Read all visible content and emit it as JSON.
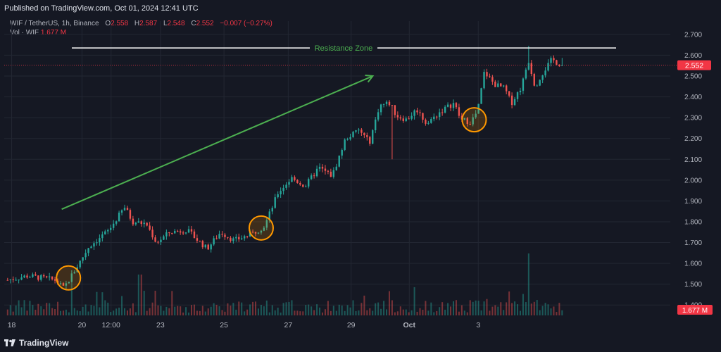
{
  "header": {
    "published": "Published on TradingView.com, Oct 01, 2024 12:41 UTC"
  },
  "legend": {
    "symbol": "WIF / TetherUS, 1h, Binance",
    "o_label": "O",
    "o_value": "2.558",
    "h_label": "H",
    "h_value": "2.587",
    "l_label": "L",
    "l_value": "2.548",
    "c_label": "C",
    "c_value": "2.552",
    "change": "−0.007 (−0.27%)",
    "vol_label": "Vol · WIF",
    "vol_value": "1.677 M"
  },
  "footer": {
    "brand": "TradingView"
  },
  "colors": {
    "bg": "#151823",
    "grid": "#232733",
    "up": "#26a69a",
    "down": "#ef5350",
    "green_annot": "#4caf50",
    "orange": "#ff9800",
    "price_label": "#f23645"
  },
  "chart_data": {
    "type": "candlestick",
    "y_axis": {
      "ticks": [
        "2.700",
        "2.600",
        "2.500",
        "2.400",
        "2.300",
        "2.200",
        "2.100",
        "2.000",
        "1.900",
        "1.800",
        "1.700",
        "1.600",
        "1.500",
        "1.400"
      ],
      "ylim": [
        1.35,
        2.73
      ]
    },
    "x_axis": {
      "ticks": [
        "18",
        "20",
        "12:00",
        "23",
        "25",
        "27",
        "29",
        "Oct",
        "3"
      ]
    },
    "current_price": "2.552",
    "current_volume": "1.677 M",
    "anchors": [
      {
        "t": 0,
        "p": 1.52
      },
      {
        "t": 3,
        "p": 1.54
      },
      {
        "t": 7,
        "p": 1.52
      },
      {
        "t": 8.3,
        "p": 1.48
      },
      {
        "t": 10,
        "p": 1.57
      },
      {
        "t": 12,
        "p": 1.68
      },
      {
        "t": 15,
        "p": 1.76
      },
      {
        "t": 17.3,
        "p": 1.87
      },
      {
        "t": 18.5,
        "p": 1.8
      },
      {
        "t": 20.5,
        "p": 1.79
      },
      {
        "t": 22,
        "p": 1.7
      },
      {
        "t": 24,
        "p": 1.75
      },
      {
        "t": 26.5,
        "p": 1.76
      },
      {
        "t": 29.5,
        "p": 1.67
      },
      {
        "t": 31.5,
        "p": 1.75
      },
      {
        "t": 33.5,
        "p": 1.71
      },
      {
        "t": 36,
        "p": 1.74
      },
      {
        "t": 38,
        "p": 1.78
      },
      {
        "t": 40,
        "p": 1.94
      },
      {
        "t": 42,
        "p": 2.01
      },
      {
        "t": 44,
        "p": 1.97
      },
      {
        "t": 46,
        "p": 2.06
      },
      {
        "t": 48,
        "p": 2.02
      },
      {
        "t": 50,
        "p": 2.2
      },
      {
        "t": 52,
        "p": 2.24
      },
      {
        "t": 53.5,
        "p": 2.18
      },
      {
        "t": 55,
        "p": 2.36
      },
      {
        "t": 56.5,
        "p": 2.37
      },
      {
        "t": 57.5,
        "p": 2.31
      },
      {
        "t": 59,
        "p": 2.29
      },
      {
        "t": 60.5,
        "p": 2.34
      },
      {
        "t": 62,
        "p": 2.27
      },
      {
        "t": 64,
        "p": 2.33
      },
      {
        "t": 66,
        "p": 2.37
      },
      {
        "t": 67,
        "p": 2.29
      },
      {
        "t": 68.5,
        "p": 2.28
      },
      {
        "t": 69.5,
        "p": 2.33
      },
      {
        "t": 70.5,
        "p": 2.52
      },
      {
        "t": 72,
        "p": 2.46
      },
      {
        "t": 73.5,
        "p": 2.44
      },
      {
        "t": 74.5,
        "p": 2.37
      },
      {
        "t": 76,
        "p": 2.45
      },
      {
        "t": 77,
        "p": 2.58
      },
      {
        "t": 78,
        "p": 2.45
      },
      {
        "t": 79,
        "p": 2.51
      },
      {
        "t": 80.5,
        "p": 2.58
      },
      {
        "t": 81.5,
        "p": 2.56
      },
      {
        "t": 82,
        "p": 2.552
      }
    ],
    "annotations": {
      "resistance_label": "Resistance Zone",
      "resistance_price": 2.635,
      "trend_arrow": {
        "from": {
          "t": 8,
          "p": 1.86
        },
        "to": {
          "t": 54,
          "p": 2.5
        }
      },
      "circles": [
        {
          "t": 9,
          "p": 1.53
        },
        {
          "t": 37.5,
          "p": 1.77
        },
        {
          "t": 69,
          "p": 2.29
        }
      ]
    }
  }
}
